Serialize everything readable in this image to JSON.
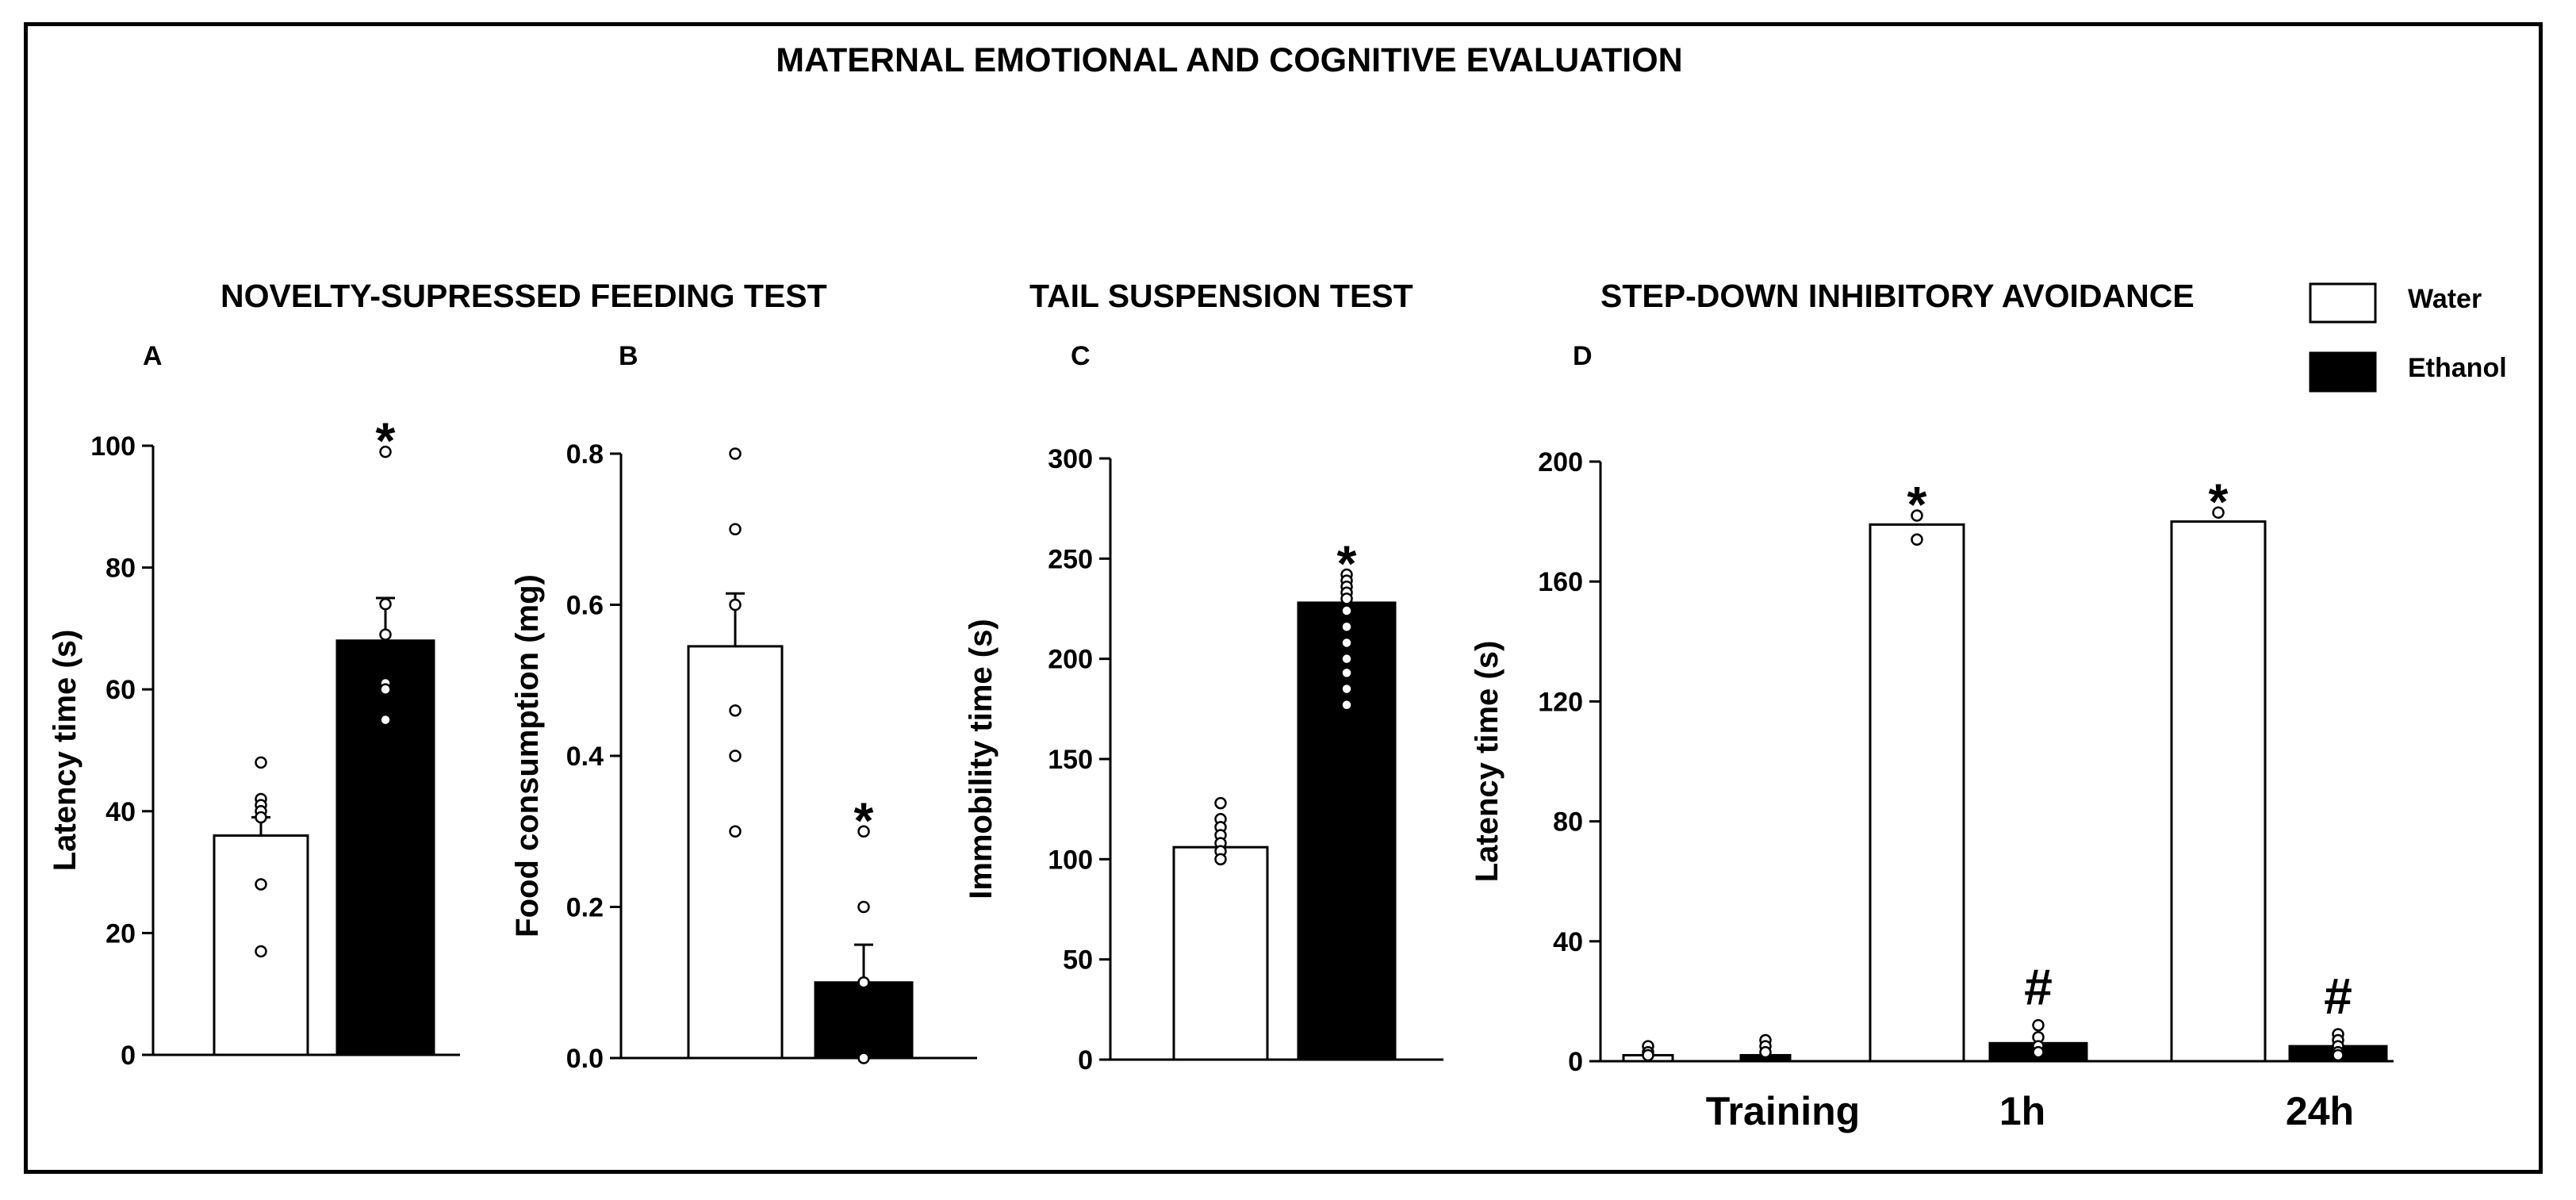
{
  "figure": {
    "title": "MATERNAL EMOTIONAL AND COGNITIVE  EVALUATION",
    "section_titles": {
      "nsf": "NOVELTY-SUPRESSED FEEDING TEST",
      "tst": "TAIL SUSPENSION TEST",
      "sdia": "STEP-DOWN INHIBITORY AVOIDANCE"
    },
    "panel_letters": {
      "a": "A",
      "b": "B",
      "c": "C",
      "d": "D"
    }
  },
  "legend": {
    "items": [
      {
        "label": "Water",
        "fill": "#ffffff"
      },
      {
        "label": "Ethanol",
        "fill": "#000000"
      }
    ]
  },
  "chart_data": [
    {
      "panel": "A",
      "type": "bar",
      "ylabel": "Latency time (s)",
      "ylim": [
        0,
        100
      ],
      "yticks": [
        0,
        20,
        40,
        60,
        80,
        100
      ],
      "ytick_labels": [
        "0",
        "20",
        "40",
        "60",
        "80",
        "100"
      ],
      "groups": [
        {
          "bars": [
            {
              "series": "Water",
              "value": 36,
              "error": 3,
              "points": [
                48,
                42,
                41,
                40,
                39,
                28,
                17
              ],
              "sig": ""
            },
            {
              "series": "Ethanol",
              "value": 68,
              "error": 7,
              "points": [
                99,
                74,
                69,
                61,
                60,
                55
              ],
              "sig": "*"
            }
          ]
        }
      ]
    },
    {
      "panel": "B",
      "type": "bar",
      "ylabel": "Food consumption (mg)",
      "ylim": [
        0,
        0.8
      ],
      "yticks": [
        0,
        0.2,
        0.4,
        0.6,
        0.8
      ],
      "ytick_labels": [
        "0.0",
        "0.2",
        "0.4",
        "0.6",
        "0.8"
      ],
      "groups": [
        {
          "bars": [
            {
              "series": "Water",
              "value": 0.545,
              "error": 0.07,
              "points": [
                0.8,
                0.7,
                0.6,
                0.46,
                0.4,
                0.3
              ],
              "sig": ""
            },
            {
              "series": "Ethanol",
              "value": 0.1,
              "error": 0.05,
              "points": [
                0.3,
                0.2,
                0.1,
                0.0
              ],
              "sig": "*"
            }
          ]
        }
      ]
    },
    {
      "panel": "C",
      "type": "bar",
      "ylabel": "Immobility time (s)",
      "ylim": [
        0,
        300
      ],
      "yticks": [
        0,
        50,
        100,
        150,
        200,
        250,
        300
      ],
      "ytick_labels": [
        "0",
        "50",
        "100",
        "150",
        "200",
        "250",
        "300"
      ],
      "groups": [
        {
          "bars": [
            {
              "series": "Water",
              "value": 106,
              "error": 0,
              "points": [
                128,
                120,
                116,
                112,
                108,
                104,
                100
              ],
              "sig": ""
            },
            {
              "series": "Ethanol",
              "value": 228,
              "error": 0,
              "points": [
                242,
                239,
                236,
                233,
                230,
                224,
                216,
                208,
                200,
                193,
                185,
                177
              ],
              "sig": "*"
            }
          ]
        }
      ]
    },
    {
      "panel": "D",
      "type": "bar",
      "ylabel": "Latency time (s)",
      "ylim": [
        0,
        200
      ],
      "yticks": [
        0,
        40,
        80,
        120,
        160,
        200
      ],
      "ytick_labels": [
        "0",
        "40",
        "80",
        "120",
        "160",
        "200"
      ],
      "categories": [
        "Training",
        "1h",
        "24h"
      ],
      "groups": [
        {
          "category": "Training",
          "bars": [
            {
              "series": "Water",
              "value": 2,
              "error": 0,
              "points": [
                5,
                3,
                2
              ],
              "sig": ""
            },
            {
              "series": "Ethanol",
              "value": 2,
              "error": 0,
              "points": [
                7,
                5,
                3
              ],
              "sig": ""
            }
          ]
        },
        {
          "category": "1h",
          "bars": [
            {
              "series": "Water",
              "value": 179,
              "error": 0,
              "points": [
                182,
                174
              ],
              "sig": "*"
            },
            {
              "series": "Ethanol",
              "value": 6,
              "error": 0,
              "points": [
                12,
                8,
                5,
                3
              ],
              "sig": "#"
            }
          ]
        },
        {
          "category": "24h",
          "bars": [
            {
              "series": "Water",
              "value": 180,
              "error": 0,
              "points": [
                183
              ],
              "sig": "*"
            },
            {
              "series": "Ethanol",
              "value": 5,
              "error": 0,
              "points": [
                9,
                7,
                5,
                3,
                2
              ],
              "sig": "#"
            }
          ]
        }
      ]
    }
  ]
}
